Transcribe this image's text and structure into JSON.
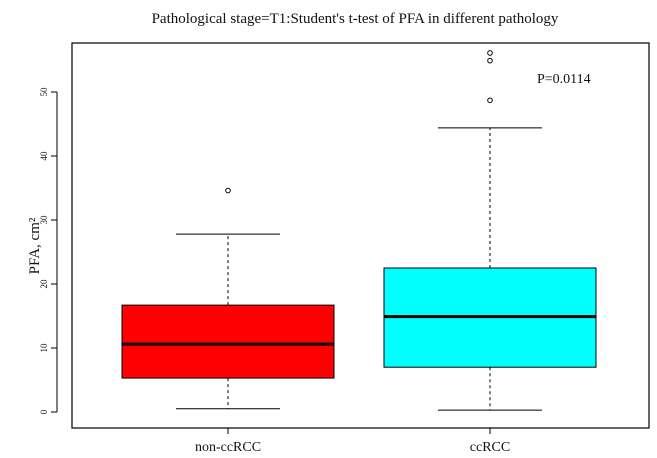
{
  "chart_data": {
    "type": "box",
    "title": "Pathological stage=T1:Student's t-test of  PFA in different pathology",
    "ylabel": "PFA, cm²",
    "xlabel": "",
    "ylim": [
      -1,
      58
    ],
    "yticks": [
      "0",
      "10",
      "20",
      "30",
      "40",
      "50"
    ],
    "grid": false,
    "legend": "none",
    "categories": [
      "non-ccRCC",
      "ccRCC"
    ],
    "boxes": [
      {
        "category": "non-ccRCC",
        "color": "#ff0000",
        "min": 0.5,
        "q1": 5.3,
        "median": 10.6,
        "q3": 16.7,
        "max": 27.8,
        "outliers": [
          34.6
        ]
      },
      {
        "category": "ccRCC",
        "color": "#00ffff",
        "min": 0.3,
        "q1": 7.0,
        "median": 14.9,
        "q3": 22.5,
        "max": 44.4,
        "outliers": [
          48.7,
          54.9,
          56.1
        ]
      }
    ],
    "annotation": "P=0.0114"
  }
}
